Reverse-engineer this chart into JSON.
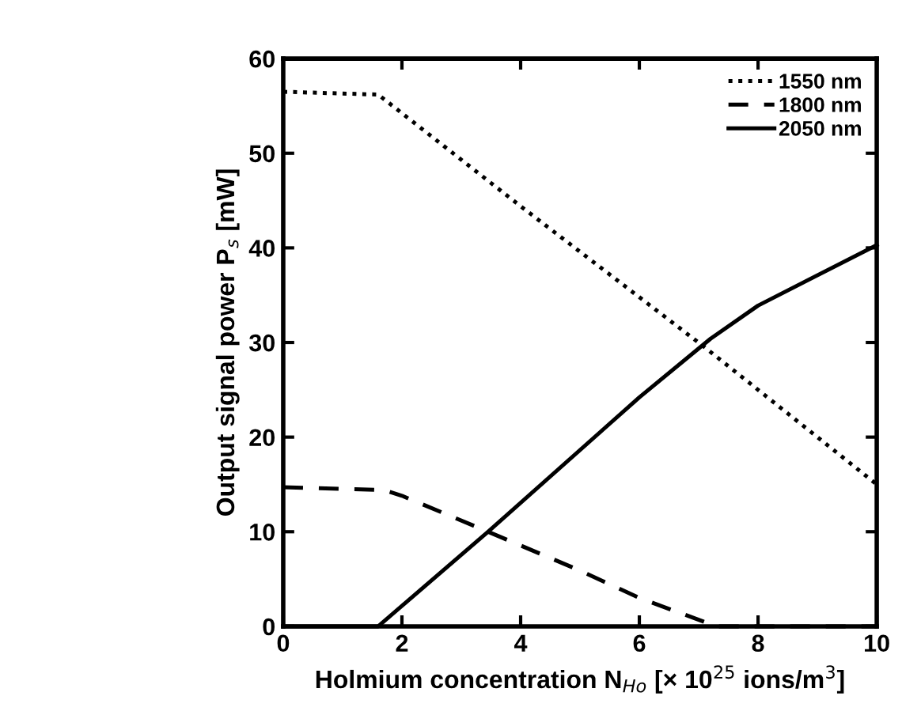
{
  "chart_data": {
    "type": "line",
    "xlabel": "Holmium concentration N$_{Ho}$ [× 10$^{25}$ ions/m$^{3}$]",
    "ylabel": "Output signal power P$_{s}$ [mW]",
    "xlim": [
      0,
      10
    ],
    "ylim": [
      0,
      60
    ],
    "xticks": [
      0,
      2,
      4,
      6,
      8,
      10
    ],
    "yticks": [
      0,
      10,
      20,
      30,
      40,
      50,
      60
    ],
    "grid": false,
    "legend": "top right",
    "marker": "none",
    "series": [
      {
        "name": "1550 nm",
        "color": "#000000",
        "line_style": "dotted",
        "x": [
          0,
          1.6,
          4,
          7.1,
          10
        ],
        "values": [
          56.5,
          56.2,
          44.4,
          29.5,
          15
        ]
      },
      {
        "name": "1800 nm",
        "color": "#000000",
        "line_style": "dashed",
        "x": [
          0,
          1.7,
          2,
          3.45,
          5,
          6,
          7.3,
          10
        ],
        "values": [
          14.7,
          14.4,
          13.8,
          10,
          5.9,
          3,
          0,
          0
        ]
      },
      {
        "name": "2050 nm",
        "color": "#000000",
        "line_style": "solid",
        "x": [
          0,
          1.6,
          3.45,
          6,
          7.2,
          8,
          10
        ],
        "values": [
          0,
          0,
          10,
          24.2,
          30.4,
          33.9,
          40.3
        ]
      }
    ]
  }
}
